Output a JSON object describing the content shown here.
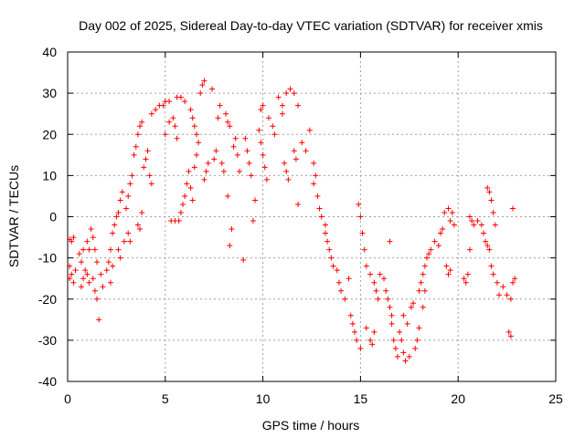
{
  "chart_data": {
    "type": "scatter",
    "title": "Day 002 of 2025, Sidereal Day-to-day VTEC variation (SDTVAR) for receiver xmis",
    "xlabel": "GPS time / hours",
    "ylabel": "SDTVAR / TECUs",
    "xlim": [
      0,
      25
    ],
    "ylim": [
      -40,
      40
    ],
    "xticks": [
      0,
      5,
      10,
      15,
      20,
      25
    ],
    "yticks": [
      -40,
      -30,
      -20,
      -10,
      0,
      10,
      20,
      30,
      40
    ],
    "grid": true,
    "marker": "plus",
    "color": "#ff0000",
    "series": [
      {
        "name": "SDTVAR",
        "points": [
          [
            0.1,
            -5.5
          ],
          [
            0.2,
            -6
          ],
          [
            0.3,
            -5
          ],
          [
            0.1,
            -12
          ],
          [
            0.2,
            -14
          ],
          [
            0.3,
            -16
          ],
          [
            0.4,
            -13
          ],
          [
            0.1,
            -15
          ],
          [
            0.6,
            -9
          ],
          [
            0.7,
            -11
          ],
          [
            0.8,
            -8
          ],
          [
            0.7,
            -17
          ],
          [
            0.8,
            -15
          ],
          [
            0.9,
            -13
          ],
          [
            1.0,
            -6
          ],
          [
            1.1,
            -8
          ],
          [
            1.0,
            -14
          ],
          [
            1.1,
            -16
          ],
          [
            1.2,
            -3
          ],
          [
            1.3,
            -5
          ],
          [
            1.4,
            -8
          ],
          [
            1.5,
            -11
          ],
          [
            1.3,
            -15
          ],
          [
            1.4,
            -18
          ],
          [
            1.5,
            -20
          ],
          [
            1.6,
            -25
          ],
          [
            1.7,
            -14
          ],
          [
            1.8,
            -17
          ],
          [
            2.0,
            -13
          ],
          [
            2.1,
            -11
          ],
          [
            2.2,
            -8
          ],
          [
            2.3,
            -4
          ],
          [
            2.2,
            -16
          ],
          [
            2.3,
            -12
          ],
          [
            2.4,
            -2
          ],
          [
            2.5,
            0
          ],
          [
            2.6,
            1
          ],
          [
            2.7,
            4
          ],
          [
            2.8,
            6
          ],
          [
            2.6,
            -8
          ],
          [
            2.7,
            -10
          ],
          [
            2.9,
            -6
          ],
          [
            3.0,
            2
          ],
          [
            3.1,
            5
          ],
          [
            3.2,
            8
          ],
          [
            3.1,
            -4
          ],
          [
            3.2,
            -6
          ],
          [
            3.3,
            10
          ],
          [
            3.4,
            15
          ],
          [
            3.5,
            17
          ],
          [
            3.6,
            20
          ],
          [
            3.7,
            22
          ],
          [
            3.8,
            23
          ],
          [
            3.6,
            -2
          ],
          [
            3.7,
            -3
          ],
          [
            3.8,
            1
          ],
          [
            3.9,
            12
          ],
          [
            4.0,
            14
          ],
          [
            4.1,
            16
          ],
          [
            4.2,
            10
          ],
          [
            4.3,
            8
          ],
          [
            4.3,
            25
          ],
          [
            4.5,
            26
          ],
          [
            4.7,
            27
          ],
          [
            4.9,
            27
          ],
          [
            5.0,
            28
          ],
          [
            5.2,
            28
          ],
          [
            5.0,
            20
          ],
          [
            5.2,
            23
          ],
          [
            5.4,
            24
          ],
          [
            5.5,
            22
          ],
          [
            5.6,
            19
          ],
          [
            5.3,
            -1
          ],
          [
            5.5,
            -1
          ],
          [
            5.7,
            -1
          ],
          [
            5.8,
            1
          ],
          [
            5.9,
            3
          ],
          [
            5.6,
            29
          ],
          [
            5.8,
            29
          ],
          [
            6.0,
            28
          ],
          [
            6.0,
            5
          ],
          [
            6.1,
            8
          ],
          [
            6.2,
            11
          ],
          [
            6.3,
            7
          ],
          [
            6.4,
            4
          ],
          [
            6.3,
            26
          ],
          [
            6.4,
            24
          ],
          [
            6.5,
            22
          ],
          [
            6.6,
            20
          ],
          [
            6.5,
            12
          ],
          [
            6.6,
            15
          ],
          [
            6.7,
            18
          ],
          [
            6.8,
            30
          ],
          [
            6.9,
            32
          ],
          [
            7.0,
            33
          ],
          [
            7.0,
            9
          ],
          [
            7.1,
            11
          ],
          [
            7.2,
            13
          ],
          [
            7.4,
            31
          ],
          [
            7.5,
            14
          ],
          [
            7.6,
            16
          ],
          [
            7.7,
            24
          ],
          [
            7.8,
            27
          ],
          [
            7.9,
            13
          ],
          [
            8.0,
            11
          ],
          [
            8.1,
            25
          ],
          [
            8.2,
            23
          ],
          [
            8.3,
            22
          ],
          [
            8.4,
            -3
          ],
          [
            8.3,
            -7
          ],
          [
            8.2,
            5
          ],
          [
            8.5,
            17
          ],
          [
            8.6,
            19
          ],
          [
            8.7,
            15
          ],
          [
            8.8,
            11
          ],
          [
            9.0,
            -10.5
          ],
          [
            9.1,
            19
          ],
          [
            9.2,
            16
          ],
          [
            9.3,
            13
          ],
          [
            9.4,
            10
          ],
          [
            9.5,
            -1
          ],
          [
            9.6,
            4
          ],
          [
            9.8,
            21
          ],
          [
            9.9,
            18
          ],
          [
            10.0,
            15
          ],
          [
            10.1,
            12
          ],
          [
            10.2,
            9
          ],
          [
            9.9,
            26
          ],
          [
            10.0,
            27
          ],
          [
            10.3,
            24
          ],
          [
            10.5,
            22
          ],
          [
            10.6,
            20
          ],
          [
            10.8,
            29
          ],
          [
            11.0,
            27
          ],
          [
            11.2,
            30
          ],
          [
            11.4,
            31
          ],
          [
            11.6,
            30
          ],
          [
            11.0,
            25
          ],
          [
            11.1,
            13
          ],
          [
            11.2,
            11
          ],
          [
            11.3,
            9
          ],
          [
            11.8,
            27
          ],
          [
            11.6,
            16
          ],
          [
            11.7,
            14
          ],
          [
            11.8,
            3
          ],
          [
            12.0,
            18
          ],
          [
            12.2,
            16
          ],
          [
            12.4,
            21
          ],
          [
            12.6,
            8
          ],
          [
            12.8,
            5
          ],
          [
            12.6,
            13
          ],
          [
            12.7,
            10
          ],
          [
            12.9,
            2
          ],
          [
            13.0,
            0
          ],
          [
            13.2,
            -2
          ],
          [
            13.2,
            -4
          ],
          [
            13.3,
            -6
          ],
          [
            13.4,
            -8
          ],
          [
            13.5,
            -10
          ],
          [
            13.6,
            -12
          ],
          [
            13.8,
            -13
          ],
          [
            13.9,
            -16
          ],
          [
            14.0,
            -18
          ],
          [
            14.2,
            -20
          ],
          [
            14.4,
            -15
          ],
          [
            14.5,
            -24
          ],
          [
            14.6,
            -26
          ],
          [
            14.7,
            -28
          ],
          [
            14.8,
            -30
          ],
          [
            15.0,
            -32
          ],
          [
            14.9,
            3
          ],
          [
            15.0,
            0
          ],
          [
            15.1,
            -4
          ],
          [
            15.2,
            -8
          ],
          [
            15.3,
            -12
          ],
          [
            15.3,
            -27
          ],
          [
            15.5,
            -30
          ],
          [
            15.6,
            -31
          ],
          [
            15.7,
            -28
          ],
          [
            15.5,
            -14
          ],
          [
            15.7,
            -16
          ],
          [
            15.8,
            -18
          ],
          [
            15.9,
            -20
          ],
          [
            16.0,
            -14
          ],
          [
            16.2,
            -15
          ],
          [
            16.3,
            -18
          ],
          [
            16.4,
            -20
          ],
          [
            16.5,
            -22
          ],
          [
            16.6,
            -24
          ],
          [
            16.5,
            -6
          ],
          [
            16.6,
            -26
          ],
          [
            16.7,
            -30
          ],
          [
            16.8,
            -32
          ],
          [
            16.9,
            -34
          ],
          [
            17.0,
            -28
          ],
          [
            17.1,
            -30
          ],
          [
            17.2,
            -33
          ],
          [
            17.3,
            -35
          ],
          [
            17.5,
            -34
          ],
          [
            17.2,
            -24
          ],
          [
            17.4,
            -26
          ],
          [
            17.6,
            -22
          ],
          [
            17.7,
            -21
          ],
          [
            17.8,
            -32
          ],
          [
            17.9,
            -30
          ],
          [
            18.0,
            -27
          ],
          [
            18.2,
            -22
          ],
          [
            18.3,
            -18
          ],
          [
            18.0,
            -18
          ],
          [
            18.1,
            -16
          ],
          [
            18.2,
            -14
          ],
          [
            18.3,
            -12
          ],
          [
            18.4,
            -10
          ],
          [
            18.5,
            -9
          ],
          [
            18.6,
            -8
          ],
          [
            18.8,
            -6
          ],
          [
            19.0,
            -7
          ],
          [
            19.1,
            -4
          ],
          [
            19.2,
            -3
          ],
          [
            19.4,
            -12
          ],
          [
            19.5,
            -14
          ],
          [
            19.6,
            -13
          ],
          [
            19.7,
            1
          ],
          [
            19.3,
            1
          ],
          [
            19.5,
            2
          ],
          [
            19.6,
            -1
          ],
          [
            19.8,
            -2
          ],
          [
            20.3,
            -15
          ],
          [
            20.4,
            -16
          ],
          [
            20.5,
            -14
          ],
          [
            20.6,
            -8
          ],
          [
            20.6,
            0
          ],
          [
            20.7,
            -1
          ],
          [
            20.8,
            -2
          ],
          [
            21.0,
            -1
          ],
          [
            21.2,
            -2
          ],
          [
            21.3,
            -4
          ],
          [
            21.4,
            -6
          ],
          [
            21.5,
            -7
          ],
          [
            21.6,
            -8
          ],
          [
            21.5,
            7
          ],
          [
            21.6,
            6
          ],
          [
            21.7,
            4
          ],
          [
            21.8,
            1
          ],
          [
            21.9,
            -2
          ],
          [
            21.7,
            -12
          ],
          [
            21.8,
            -14
          ],
          [
            22.0,
            -16
          ],
          [
            22.1,
            -19
          ],
          [
            22.3,
            -17
          ],
          [
            22.5,
            -19
          ],
          [
            22.7,
            -20
          ],
          [
            22.8,
            -16
          ],
          [
            22.9,
            -15
          ],
          [
            22.6,
            -28
          ],
          [
            22.7,
            -29
          ],
          [
            22.8,
            2
          ]
        ]
      }
    ]
  }
}
